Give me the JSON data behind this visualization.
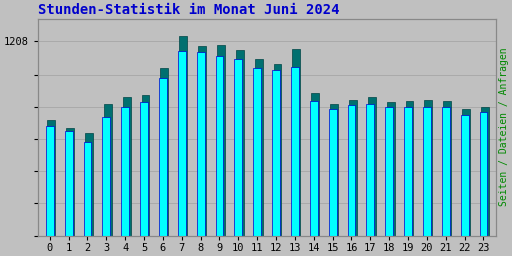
{
  "title": "Stunden-Statistik im Monat Juni 2024",
  "ylabel_right": "Seiten / Dateien / Anfragen",
  "hours": [
    0,
    1,
    2,
    3,
    4,
    5,
    6,
    7,
    8,
    9,
    10,
    11,
    12,
    13,
    14,
    15,
    16,
    17,
    18,
    19,
    20,
    21,
    22,
    23
  ],
  "cyan_values": [
    680,
    650,
    580,
    740,
    800,
    830,
    980,
    1150,
    1140,
    1120,
    1100,
    1040,
    1030,
    1050,
    840,
    790,
    810,
    820,
    800,
    800,
    800,
    800,
    750,
    770
  ],
  "green_values": [
    720,
    670,
    640,
    820,
    860,
    875,
    1040,
    1240,
    1180,
    1185,
    1155,
    1100,
    1070,
    1160,
    890,
    820,
    845,
    860,
    830,
    840,
    845,
    835,
    790,
    800
  ],
  "bar_width": 0.42,
  "cyan_color": "#00FFFF",
  "green_color": "#007070",
  "cyan_edge": "#0000CC",
  "green_edge": "#004444",
  "bg_color": "#C0C0C0",
  "plot_bg": "#C0C0C0",
  "title_color": "#0000CC",
  "title_fontsize": 10,
  "tick_fontsize": 7.5,
  "ylabel_right_color": "#008800",
  "ylabel_right_fontsize": 7,
  "ylim": [
    0,
    1350
  ],
  "ytick_val": 1208,
  "grid_color": "#AAAAAA",
  "grid_linewidth": 0.7
}
